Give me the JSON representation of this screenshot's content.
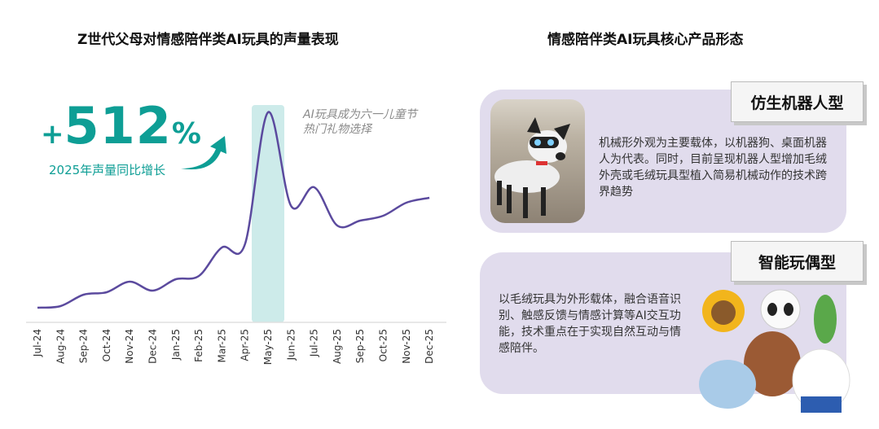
{
  "left": {
    "title": "Z世代父母对情感陪伴类AI玩具的声量表现",
    "growth": {
      "plus": "+",
      "value": "512",
      "percent": "%",
      "label": "2025年声量同比增长"
    },
    "annotation": "AI玩具成为六一儿童节热门礼物选择",
    "colors": {
      "accent": "#0e9e95",
      "line": "#5b4a9e",
      "highlight": "#cdebea"
    }
  },
  "chart_data": {
    "type": "line",
    "categories": [
      "Jul-24",
      "Aug-24",
      "Sep-24",
      "Oct-24",
      "Nov-24",
      "Dec-24",
      "Jan-25",
      "Feb-25",
      "Mar-25",
      "Apr-25",
      "May-25",
      "Jun-25",
      "Jul-25",
      "Aug-25",
      "Sep-25",
      "Oct-25",
      "Nov-25",
      "Dec-25"
    ],
    "values": [
      18,
      20,
      34,
      37,
      50,
      39,
      53,
      57,
      92,
      96,
      258,
      143,
      166,
      119,
      125,
      131,
      147,
      153
    ],
    "highlight_category": "May-25",
    "y_axis_shown": false,
    "grid": false
  },
  "right": {
    "title": "情感陪伴类AI玩具核心产品形态",
    "cards": [
      {
        "tag": "仿生机器人型",
        "text": "机械形外观为主要载体，以机器狗、桌面机器人为代表。同时，目前呈现机器人型增加毛绒外壳或毛绒玩具型植入简易机械动作的技术跨界趋势",
        "image": "robot-dog-photo"
      },
      {
        "tag": "智能玩偶型",
        "text": "以毛绒玩具为外形载体，融合语音识别、触感反馈与情感计算等AI交互功能，技术重点在于实现自然互动与情感陪伴。",
        "image": "plush-toys-photo"
      }
    ],
    "colors": {
      "card": "#e1dced"
    }
  }
}
